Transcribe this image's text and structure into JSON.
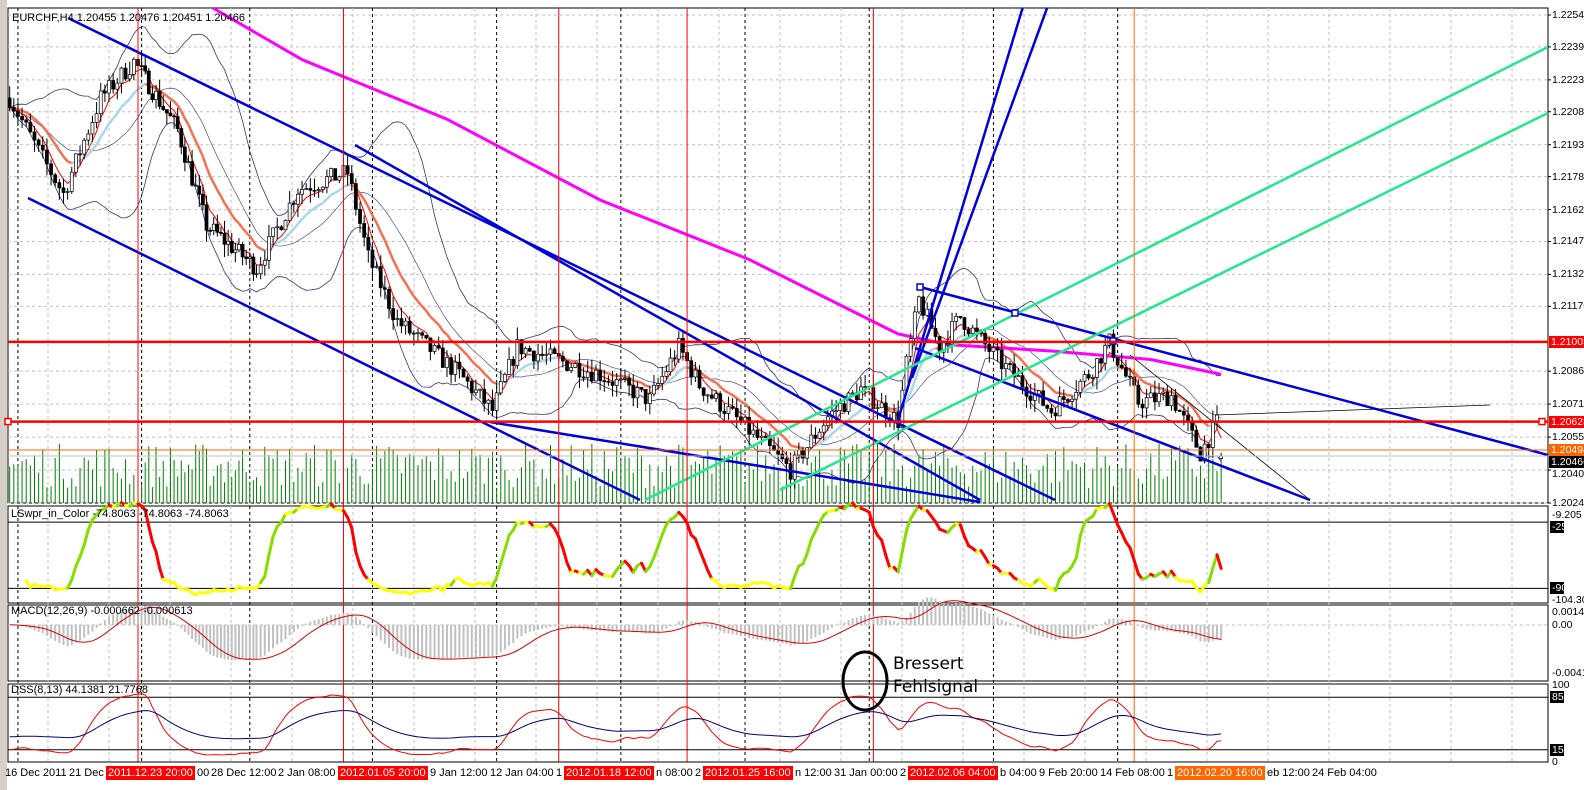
{
  "window": {
    "title": "EURCHF,H4  1.20455 1.20476 1.20451 1.20466"
  },
  "chart_data": {
    "type": "candlestick",
    "symbol": "EURCHF",
    "timeframe": "H4",
    "last_bar": {
      "time": "2012-02-24 04:00",
      "open": 1.20455,
      "high": 1.20476,
      "low": 1.20451,
      "close": 1.20466
    },
    "ylim": [
      1.20245,
      1.2254
    ],
    "grid": true,
    "price_ticks": [
      "1.22540",
      "1.22390",
      "1.22235",
      "1.22085",
      "1.21930",
      "1.21780",
      "1.21625",
      "1.21475",
      "1.21320",
      "1.21170",
      "1.20865",
      "1.20710",
      "1.20555",
      "1.20400",
      "1.20245"
    ],
    "price_markers": [
      {
        "label": "1.21003",
        "price": 1.21003,
        "color": "#ff0000"
      },
      {
        "label": "1.20628",
        "price": 1.20628,
        "color": "#ff0000"
      },
      {
        "label": "1.20494",
        "price": 1.20494,
        "color": "#ff6600"
      },
      {
        "label": "1.20466",
        "price": 1.20466,
        "color": "#000000"
      }
    ],
    "close_path": [
      {
        "t": "2011-12-16 16:00",
        "close": 1.2215
      },
      {
        "t": "2011-12-19 20:00",
        "close": 1.219
      },
      {
        "t": "2011-12-20 20:00",
        "close": 1.217
      },
      {
        "t": "2011-12-22 08:00",
        "close": 1.2215
      },
      {
        "t": "2011-12-23 16:00",
        "close": 1.2232
      },
      {
        "t": "2011-12-27 16:00",
        "close": 1.22
      },
      {
        "t": "2011-12-29 00:00",
        "close": 1.2155
      },
      {
        "t": "2012-01-02 08:00",
        "close": 1.2135
      },
      {
        "t": "2012-01-04 00:00",
        "close": 1.2172
      },
      {
        "t": "2012-01-06 00:00",
        "close": 1.218
      },
      {
        "t": "2012-01-06 20:00",
        "close": 1.214
      },
      {
        "t": "2012-01-10 00:00",
        "close": 1.211
      },
      {
        "t": "2012-01-12 12:00",
        "close": 1.2085
      },
      {
        "t": "2012-01-13 20:00",
        "close": 1.2068
      },
      {
        "t": "2012-01-16 20:00",
        "close": 1.2098
      },
      {
        "t": "2012-01-20 04:00",
        "close": 1.2085
      },
      {
        "t": "2012-01-24 04:00",
        "close": 1.2073
      },
      {
        "t": "2012-01-25 08:00",
        "close": 1.2098
      },
      {
        "t": "2012-01-26 04:00",
        "close": 1.208
      },
      {
        "t": "2012-01-30 12:00",
        "close": 1.2055
      },
      {
        "t": "2012-01-31 20:00",
        "close": 1.204
      },
      {
        "t": "2012-02-02 08:00",
        "close": 1.2065
      },
      {
        "t": "2012-02-03 16:00",
        "close": 1.2078
      },
      {
        "t": "2012-02-07 04:00",
        "close": 1.2063
      },
      {
        "t": "2012-02-07 12:00",
        "close": 1.209
      },
      {
        "t": "2012-02-08 00:00",
        "close": 1.212
      },
      {
        "t": "2012-02-08 20:00",
        "close": 1.2098
      },
      {
        "t": "2012-02-09 16:00",
        "close": 1.2112
      },
      {
        "t": "2012-02-13 08:00",
        "close": 1.209
      },
      {
        "t": "2012-02-15 08:00",
        "close": 1.2068
      },
      {
        "t": "2012-02-16 20:00",
        "close": 1.2085
      },
      {
        "t": "2012-02-17 16:00",
        "close": 1.21
      },
      {
        "t": "2012-02-20 20:00",
        "close": 1.2072
      },
      {
        "t": "2012-02-22 04:00",
        "close": 1.2075
      },
      {
        "t": "2012-02-23 08:00",
        "close": 1.2048
      },
      {
        "t": "2012-02-24 00:00",
        "close": 1.2062
      },
      {
        "t": "2012-02-24 04:00",
        "close": 1.20466
      }
    ],
    "ma_long": [
      {
        "t": "2011-12-28 16:00",
        "value": 1.2261
      },
      {
        "t": "2012-01-04 04:00",
        "value": 1.2233
      },
      {
        "t": "2012-01-12 00:00",
        "value": 1.2205
      },
      {
        "t": "2012-01-20 04:00",
        "value": 1.2167
      },
      {
        "t": "2012-01-30 04:00",
        "value": 1.2139
      },
      {
        "t": "2012-02-07 04:00",
        "value": 1.2104
      },
      {
        "t": "2012-02-09 04:00",
        "value": 1.2099
      },
      {
        "t": "2012-02-15 08:00",
        "value": 1.2096
      },
      {
        "t": "2012-02-21 08:00",
        "value": 1.2092
      },
      {
        "t": "2012-02-24 04:00",
        "value": 1.2085
      }
    ],
    "colors": {
      "ma_long": "#ff00ff",
      "ma_fast": "#ff0000",
      "ma_slow_down": "#f4704f",
      "ma_slow_up": "#a8d8e8",
      "bands": "#333380",
      "volume": "#008000",
      "trendline": "#0000dd",
      "channel_green": "#22e88a",
      "level": "#ff0000"
    },
    "vertical_markers": [
      {
        "t": "2011-12-23 20:00",
        "label": "2011.12.23 20:00",
        "color": "#ff0000"
      },
      {
        "t": "2012-01-05 20:00",
        "label": "2012.01.05 20:00",
        "color": "#ff0000"
      },
      {
        "t": "2012-01-18 12:00",
        "label": "2012.01.18 12:00",
        "color": "#ff0000"
      },
      {
        "t": "2012-01-25 16:00",
        "label": "2012.01.25 16:00",
        "color": "#ff0000"
      },
      {
        "t": "2012-02-06 04:00",
        "label": "2012.02.06 04:00",
        "color": "#ff0000"
      },
      {
        "t": "2012-02-20 16:00",
        "label": "2012.02.20 16:00",
        "color": "#ff6600"
      }
    ],
    "time_labels": [
      "16 Dec 2011",
      "21 Dec",
      "00",
      "28 Dec 12:00",
      "2 Jan 08:00",
      "9 Jan 12:00",
      "12 Jan 04:00",
      "1",
      "n 08:00",
      "2",
      "n 12:00",
      "31 Jan 00:00",
      "2",
      "b 04:00",
      "9 Feb 20:00",
      "14 Feb 08:00",
      "1",
      "eb 12:00",
      "24 Feb 04:00"
    ],
    "indicators": [
      {
        "name": "LSwpr_in_Color",
        "label": "LSwpr_in_Color -74.8063 -74.8063 -74.8063",
        "ylim": [
          -104.302,
          -9.205
        ],
        "axis": [
          "-9.205",
          "-104.302"
        ],
        "levels": [
          {
            "value": -25,
            "label": "-25"
          },
          {
            "value": -90,
            "label": "-90"
          }
        ],
        "colors": {
          "up": "#88dd00",
          "down": "#ff0000",
          "flat": "#ffff00"
        }
      },
      {
        "name": "MACD",
        "label": "MACD(12,26,9) -0.000662 -0.000613",
        "ylim": [
          -0.00417,
          0.00146
        ],
        "axis": [
          "0.00146",
          "0.00",
          "-0.00417"
        ],
        "colors": {
          "hist": "#c0c0c0",
          "signal": "#dd0000"
        }
      },
      {
        "name": "DSS",
        "label": "DSS(8,13) 44.1381 21.7768",
        "ylim": [
          0,
          100
        ],
        "axis": [
          "100",
          "0"
        ],
        "levels": [
          {
            "value": 85,
            "label": "85"
          },
          {
            "value": 15,
            "label": "15"
          }
        ],
        "colors": {
          "dss": "#000080",
          "signal": "#ff0000"
        }
      }
    ]
  },
  "annotation": {
    "line1": "Bressert",
    "line2": "Fehlsignal"
  }
}
